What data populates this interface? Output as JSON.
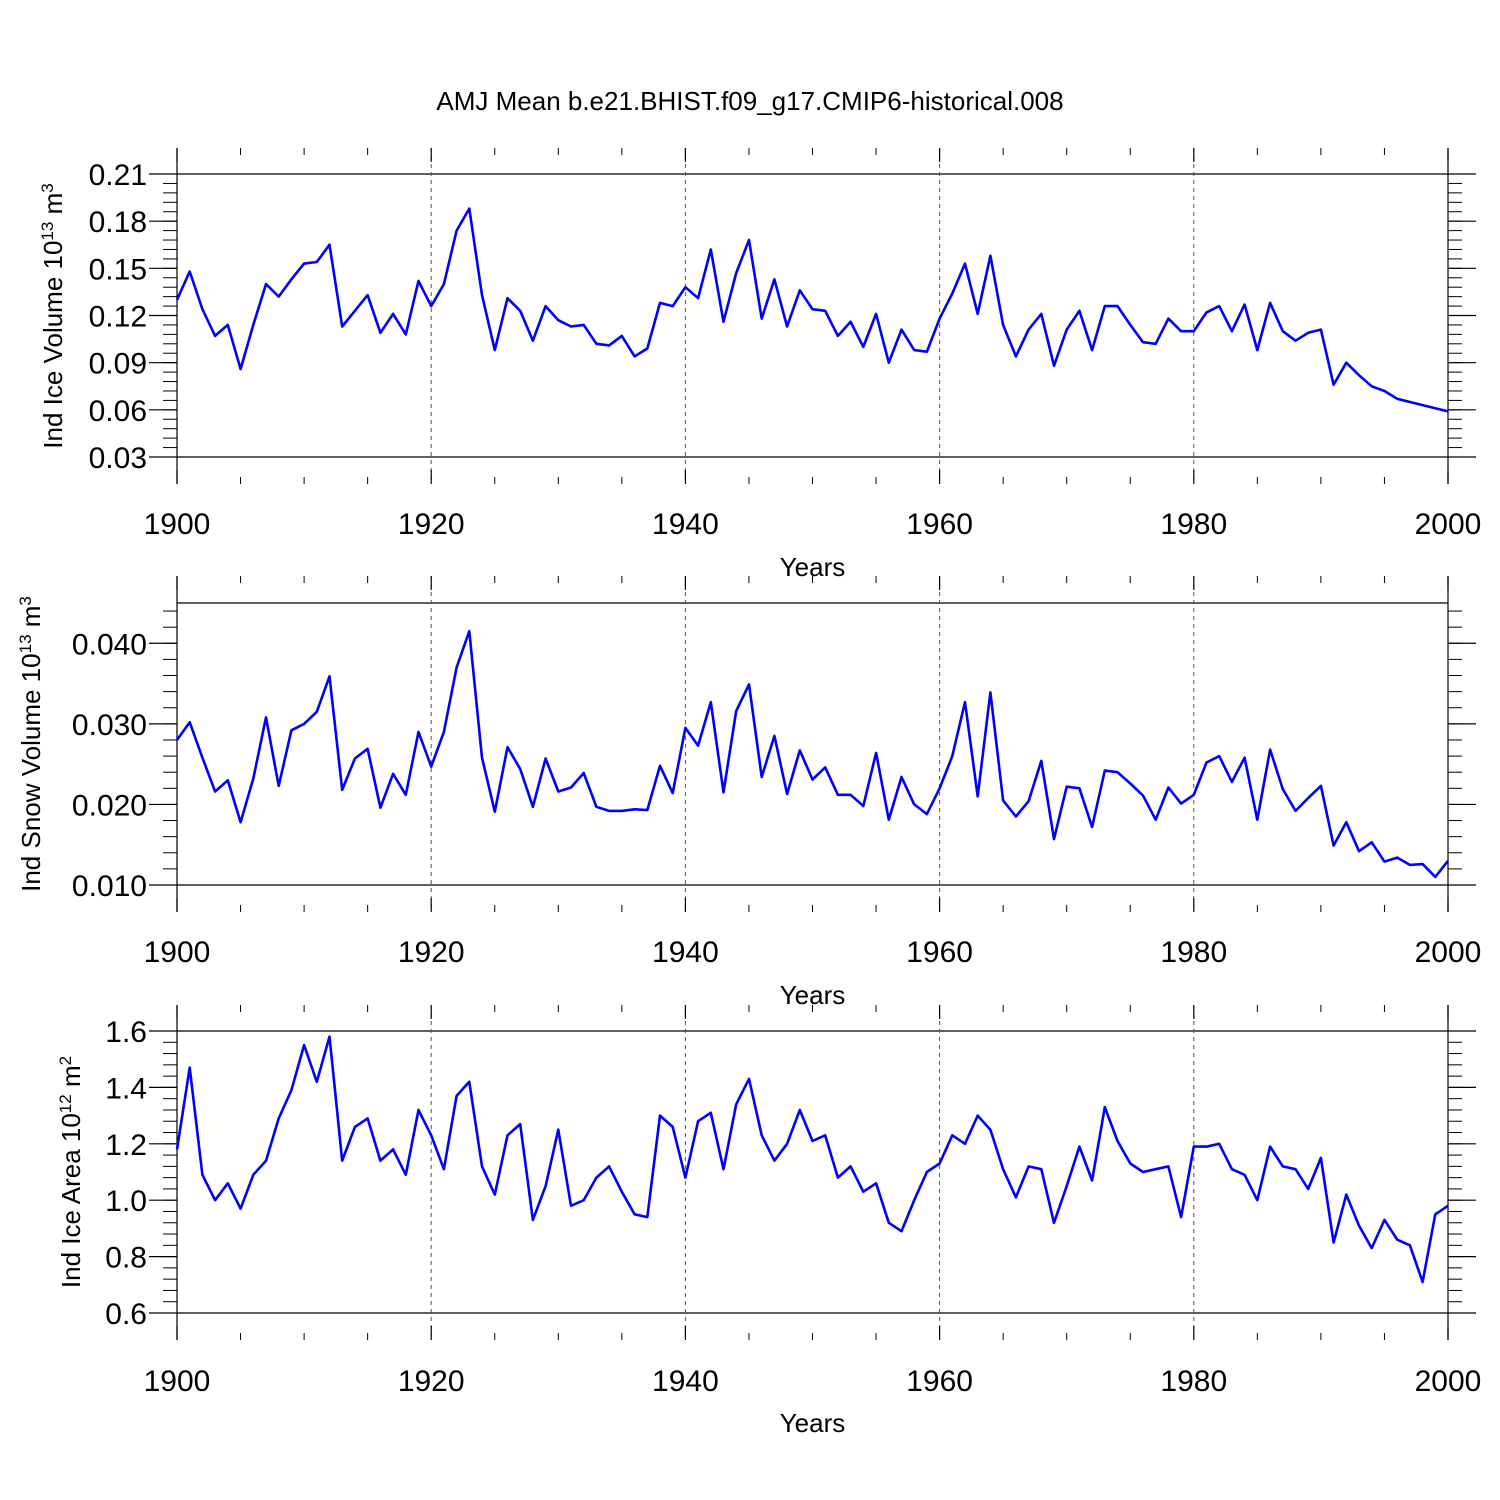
{
  "title": "AMJ Mean b.e21.BHIST.f09_g17.CMIP6-historical.008",
  "chart_data": [
    {
      "type": "line",
      "title": "AMJ Mean b.e21.BHIST.f09_g17.CMIP6-historical.008",
      "xlabel": "Years",
      "ylabel": {
        "text": "Ind Ice Volume 10",
        "exp": "13",
        "unit": " m",
        "unit_exp": "3"
      },
      "xlim": [
        1900,
        2000
      ],
      "ylim": [
        0.03,
        0.21
      ],
      "xticks": [
        1900,
        1920,
        1940,
        1960,
        1980,
        2000
      ],
      "xtick_labels": [
        "1900",
        "1920",
        "1940",
        "1960",
        "1980",
        "2000"
      ],
      "yticks": [
        0.03,
        0.06,
        0.09,
        0.12,
        0.15,
        0.18,
        0.21
      ],
      "ytick_labels": [
        "0.03",
        "0.06",
        "0.09",
        "0.12",
        "0.15",
        "0.18",
        "0.21"
      ],
      "grid": "dashed vertical at major x ticks",
      "color": "#0000ff",
      "x_start": 1900,
      "values": [
        0.13,
        0.148,
        0.124,
        0.107,
        0.114,
        0.086,
        0.114,
        0.14,
        0.132,
        0.143,
        0.153,
        0.154,
        0.165,
        0.113,
        0.123,
        0.133,
        0.109,
        0.121,
        0.108,
        0.142,
        0.126,
        0.14,
        0.174,
        0.188,
        0.133,
        0.098,
        0.131,
        0.123,
        0.104,
        0.126,
        0.117,
        0.113,
        0.114,
        0.102,
        0.101,
        0.107,
        0.094,
        0.099,
        0.128,
        0.126,
        0.138,
        0.131,
        0.162,
        0.116,
        0.147,
        0.168,
        0.118,
        0.143,
        0.113,
        0.136,
        0.124,
        0.123,
        0.107,
        0.116,
        0.1,
        0.121,
        0.09,
        0.111,
        0.098,
        0.097,
        0.118,
        0.134,
        0.153,
        0.121,
        0.158,
        0.114,
        0.094,
        0.111,
        0.121,
        0.088,
        0.111,
        0.123,
        0.098,
        0.126,
        0.126,
        0.114,
        0.103,
        0.102,
        0.118,
        0.11,
        0.11,
        0.122,
        0.126,
        0.11,
        0.127,
        0.098,
        0.128,
        0.11,
        0.104,
        0.109,
        0.111,
        0.076,
        0.09,
        0.082,
        0.075,
        0.072,
        0.067,
        0.065,
        0.063,
        0.061,
        0.059
      ]
    },
    {
      "type": "line",
      "title": "",
      "xlabel": "Years",
      "ylabel": {
        "text": "Ind Snow Volume 10",
        "exp": "13",
        "unit": " m",
        "unit_exp": "3"
      },
      "xlim": [
        1900,
        2000
      ],
      "ylim": [
        0.01,
        0.045
      ],
      "xticks": [
        1900,
        1920,
        1940,
        1960,
        1980,
        2000
      ],
      "xtick_labels": [
        "1900",
        "1920",
        "1940",
        "1960",
        "1980",
        "2000"
      ],
      "yticks": [
        0.01,
        0.02,
        0.03,
        0.04
      ],
      "ytick_labels": [
        "0.010",
        "0.020",
        "0.030",
        "0.040"
      ],
      "grid": "dashed vertical at major x ticks",
      "color": "#0000ff",
      "x_start": 1900,
      "values": [
        0.028,
        0.0302,
        0.0258,
        0.0216,
        0.023,
        0.0178,
        0.0232,
        0.0308,
        0.0223,
        0.0292,
        0.03,
        0.0315,
        0.0359,
        0.0218,
        0.0257,
        0.0269,
        0.0196,
        0.0238,
        0.0212,
        0.029,
        0.0247,
        0.029,
        0.037,
        0.0415,
        0.0258,
        0.0191,
        0.0271,
        0.0244,
        0.0197,
        0.0257,
        0.0216,
        0.0221,
        0.0239,
        0.0197,
        0.0192,
        0.0192,
        0.0194,
        0.0193,
        0.0248,
        0.0214,
        0.0295,
        0.0273,
        0.0327,
        0.0215,
        0.0316,
        0.0349,
        0.0234,
        0.0285,
        0.0213,
        0.0267,
        0.0231,
        0.0246,
        0.0212,
        0.0212,
        0.0198,
        0.0264,
        0.0181,
        0.0234,
        0.02,
        0.0188,
        0.022,
        0.026,
        0.0327,
        0.021,
        0.0339,
        0.0205,
        0.0185,
        0.0204,
        0.0254,
        0.0157,
        0.0222,
        0.022,
        0.0172,
        0.0242,
        0.024,
        0.0226,
        0.0211,
        0.0181,
        0.0221,
        0.0201,
        0.0212,
        0.0252,
        0.026,
        0.0228,
        0.0258,
        0.0181,
        0.0268,
        0.0219,
        0.0192,
        0.0208,
        0.0223,
        0.0149,
        0.0178,
        0.0142,
        0.0153,
        0.0129,
        0.0134,
        0.0125,
        0.0126,
        0.011,
        0.013
      ]
    },
    {
      "type": "line",
      "title": "",
      "xlabel": "Years",
      "ylabel": {
        "text": "Ind Ice Area 10",
        "exp": "12",
        "unit": " m",
        "unit_exp": "2"
      },
      "xlim": [
        1900,
        2000
      ],
      "ylim": [
        0.6,
        1.6
      ],
      "xticks": [
        1900,
        1920,
        1940,
        1960,
        1980,
        2000
      ],
      "xtick_labels": [
        "1900",
        "1920",
        "1940",
        "1960",
        "1980",
        "2000"
      ],
      "yticks": [
        0.6,
        0.8,
        1.0,
        1.2,
        1.4,
        1.6
      ],
      "ytick_labels": [
        "0.6",
        "0.8",
        "1.0",
        "1.2",
        "1.4",
        "1.6"
      ],
      "grid": "dashed vertical at major x ticks",
      "color": "#0000ff",
      "x_start": 1900,
      "values": [
        1.18,
        1.47,
        1.09,
        1.0,
        1.06,
        0.97,
        1.09,
        1.14,
        1.29,
        1.39,
        1.55,
        1.42,
        1.58,
        1.14,
        1.26,
        1.29,
        1.14,
        1.18,
        1.09,
        1.32,
        1.23,
        1.11,
        1.37,
        1.42,
        1.12,
        1.02,
        1.23,
        1.27,
        0.93,
        1.05,
        1.25,
        0.98,
        1.0,
        1.08,
        1.12,
        1.03,
        0.95,
        0.94,
        1.3,
        1.26,
        1.08,
        1.28,
        1.31,
        1.11,
        1.34,
        1.43,
        1.23,
        1.14,
        1.2,
        1.32,
        1.21,
        1.23,
        1.08,
        1.12,
        1.03,
        1.06,
        0.92,
        0.89,
        1.0,
        1.1,
        1.13,
        1.23,
        1.2,
        1.3,
        1.25,
        1.11,
        1.01,
        1.12,
        1.11,
        0.92,
        1.05,
        1.19,
        1.07,
        1.33,
        1.21,
        1.13,
        1.1,
        1.11,
        1.12,
        0.94,
        1.19,
        1.19,
        1.2,
        1.11,
        1.09,
        1.0,
        1.19,
        1.12,
        1.11,
        1.04,
        1.15,
        0.85,
        1.02,
        0.91,
        0.83,
        0.93,
        0.86,
        0.84,
        0.71,
        0.95,
        0.98
      ]
    }
  ]
}
